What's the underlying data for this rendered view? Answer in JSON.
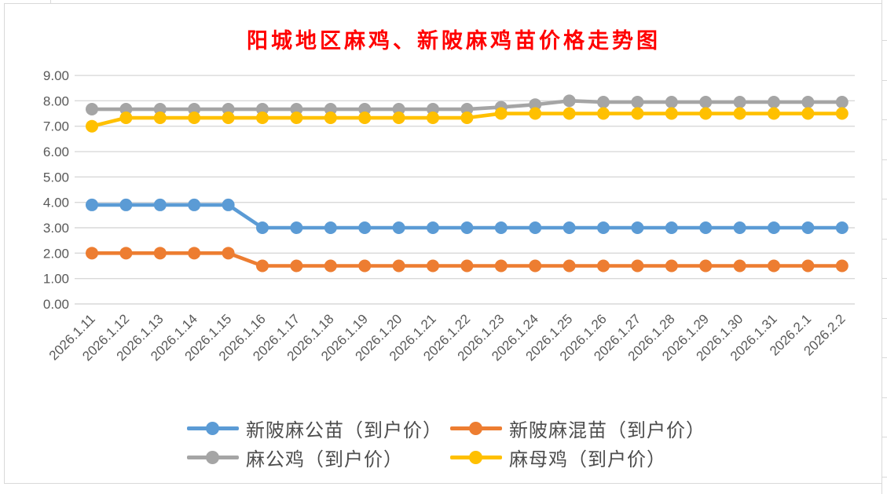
{
  "title": {
    "text": "阳城地区麻鸡、新陂麻鸡苗价格走势图",
    "color": "#FF0000"
  },
  "chart_data": {
    "type": "line",
    "title": "阳城地区麻鸡、新陂麻鸡苗价格走势图",
    "categories": [
      "2026.1.11",
      "2026.1.12",
      "2026.1.13",
      "2026.1.14",
      "2026.1.15",
      "2026.1.16",
      "2026.1.17",
      "2026.1.18",
      "2026.1.19",
      "2026.1.20",
      "2026.1.21",
      "2026.1.22",
      "2026.1.23",
      "2026.1.24",
      "2026.1.25",
      "2026.1.26",
      "2026.1.27",
      "2026.1.28",
      "2026.1.29",
      "2026.1.30",
      "2026.1.31",
      "2026.2.1",
      "2026.2.2"
    ],
    "series": [
      {
        "name": "新陂麻公苗（到户价）",
        "color": "#5B9BD5",
        "values": [
          3.9,
          3.9,
          3.9,
          3.9,
          3.9,
          3.0,
          3.0,
          3.0,
          3.0,
          3.0,
          3.0,
          3.0,
          3.0,
          3.0,
          3.0,
          3.0,
          3.0,
          3.0,
          3.0,
          3.0,
          3.0,
          3.0,
          3.0
        ]
      },
      {
        "name": "新陂麻混苗（到户价）",
        "color": "#ED7D31",
        "values": [
          2.0,
          2.0,
          2.0,
          2.0,
          2.0,
          1.5,
          1.5,
          1.5,
          1.5,
          1.5,
          1.5,
          1.5,
          1.5,
          1.5,
          1.5,
          1.5,
          1.5,
          1.5,
          1.5,
          1.5,
          1.5,
          1.5,
          1.5
        ]
      },
      {
        "name": "麻公鸡（到户价）",
        "color": "#A5A5A5",
        "values": [
          7.67,
          7.67,
          7.67,
          7.67,
          7.67,
          7.67,
          7.67,
          7.67,
          7.67,
          7.67,
          7.67,
          7.67,
          7.75,
          7.85,
          8.0,
          7.95,
          7.95,
          7.95,
          7.95,
          7.95,
          7.95,
          7.95,
          7.95
        ]
      },
      {
        "name": "麻母鸡（到户价）",
        "color": "#FFC000",
        "values": [
          7.0,
          7.33,
          7.33,
          7.33,
          7.33,
          7.33,
          7.33,
          7.33,
          7.33,
          7.33,
          7.33,
          7.33,
          7.5,
          7.5,
          7.5,
          7.5,
          7.5,
          7.5,
          7.5,
          7.5,
          7.5,
          7.5,
          7.5
        ]
      }
    ],
    "ylim": [
      0,
      9
    ],
    "ytick_step": 1,
    "ytick_labels": [
      "0.00",
      "1.00",
      "2.00",
      "3.00",
      "4.00",
      "5.00",
      "6.00",
      "7.00",
      "8.00",
      "9.00"
    ],
    "grid": true,
    "legend_position": "bottom",
    "marker": "circle",
    "axis_text_color": "#595959",
    "gridline_color": "#D9D9D9"
  }
}
